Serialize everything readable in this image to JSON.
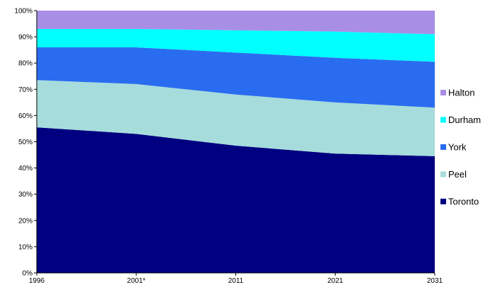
{
  "chart_data": {
    "type": "area",
    "stacking": "percent",
    "title": "",
    "xlabel": "",
    "ylabel": "",
    "categories": [
      "1996",
      "2001*",
      "2011",
      "2021",
      "2031"
    ],
    "ylim": [
      0,
      100
    ],
    "y_ticks": [
      "0%",
      "10%",
      "20%",
      "30%",
      "40%",
      "50%",
      "60%",
      "70%",
      "80%",
      "90%",
      "100%"
    ],
    "grid": false,
    "legend_position": "right",
    "series": [
      {
        "name": "Toronto",
        "color": "#000080",
        "values": [
          55.5,
          53,
          48.5,
          45.5,
          44.5
        ]
      },
      {
        "name": "Peel",
        "color": "#a6dcdc",
        "values": [
          18,
          19,
          19.5,
          19.5,
          18.5
        ]
      },
      {
        "name": "York",
        "color": "#2a6cf0",
        "values": [
          12.5,
          14,
          16,
          17,
          17.5
        ]
      },
      {
        "name": "Durham",
        "color": "#00ffff",
        "values": [
          7,
          7,
          8.5,
          10,
          10.5
        ]
      },
      {
        "name": "Halton",
        "color": "#a98ee6",
        "values": [
          7,
          7,
          7.5,
          8,
          9
        ]
      }
    ]
  }
}
